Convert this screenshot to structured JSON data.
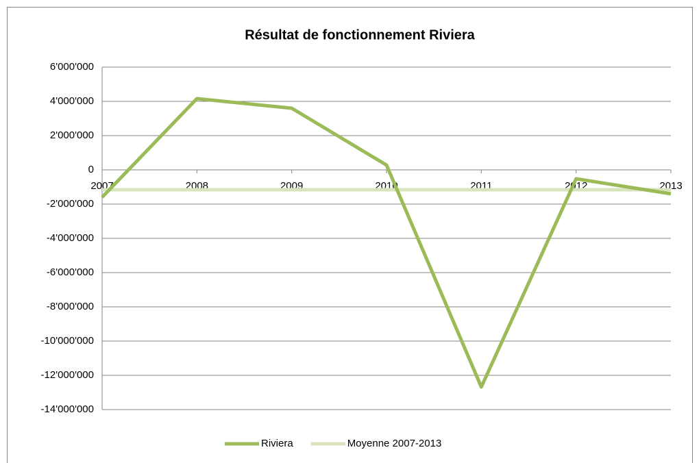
{
  "chart_data": {
    "type": "line",
    "title": "Résultat de fonctionnement Riviera",
    "categories": [
      "2007",
      "2008",
      "2009",
      "2010",
      "2011",
      "2012",
      "2013"
    ],
    "series": [
      {
        "name": "Riviera",
        "color": "#9bbb59",
        "values": [
          -1600000,
          4160000,
          3600000,
          280000,
          -12680000,
          -520000,
          -1400000
        ]
      },
      {
        "name": "Moyenne 2007-2013",
        "color": "#d7e4bd",
        "values": [
          -1160000,
          -1160000,
          -1160000,
          -1160000,
          -1160000,
          -1160000,
          -1160000
        ]
      }
    ],
    "ylim": [
      -14000000,
      6000000
    ],
    "yticks": [
      {
        "value": -14000000,
        "label": "-14'000'000"
      },
      {
        "value": -12000000,
        "label": "-12'000'000"
      },
      {
        "value": -10000000,
        "label": "-10'000'000"
      },
      {
        "value": -8000000,
        "label": "-8'000'000"
      },
      {
        "value": -6000000,
        "label": "-6'000'000"
      },
      {
        "value": -4000000,
        "label": "-4'000'000"
      },
      {
        "value": -2000000,
        "label": "-2'000'000"
      },
      0,
      {
        "value": 2000000,
        "label": "2'000'000"
      },
      {
        "value": 4000000,
        "label": "4'000'000"
      },
      {
        "value": 6000000,
        "label": "6'000'000"
      }
    ],
    "grid": true,
    "legend": "bottom"
  }
}
